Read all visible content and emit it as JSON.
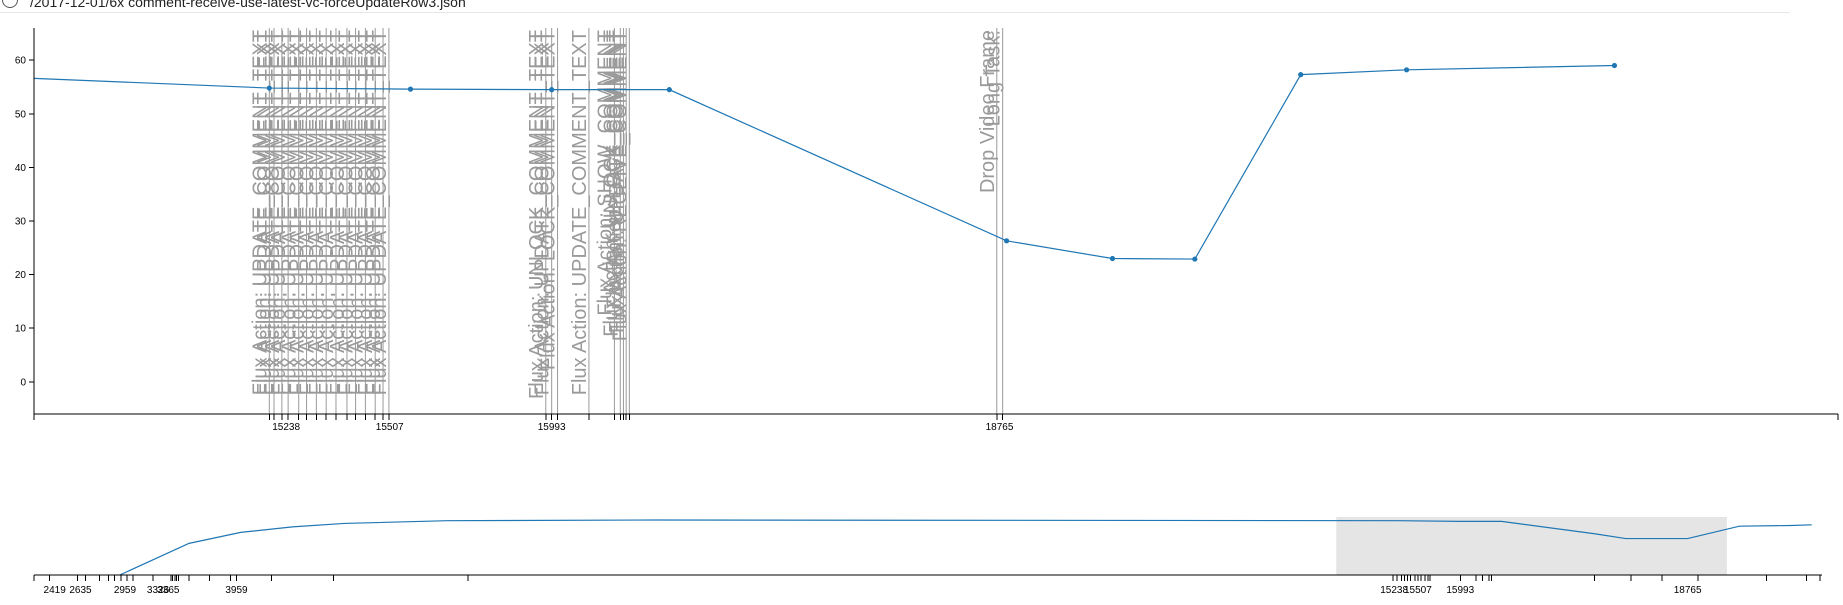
{
  "header": {
    "file_path": "/2017-12-01/6x comment-receive-use-latest-vc-forceUpdateRow3.json"
  },
  "colors": {
    "series": "#1f77b4",
    "annotation": "#9a9a9a",
    "brush": "#e5e5e5"
  },
  "chart_data": [
    {
      "type": "line",
      "title": "",
      "xlabel": "",
      "ylabel": "",
      "ylim": [
        -6,
        66
      ],
      "yticks": [
        0,
        10,
        20,
        30,
        40,
        50,
        60
      ],
      "xlim": [
        14600,
        19200
      ],
      "xtick_labels": [
        "15238",
        "15507",
        "15993",
        "18765"
      ],
      "series": [
        {
          "x": [
            14600,
            15200,
            15560,
            15920,
            16220,
            17080,
            17350,
            17560,
            17830,
            18100,
            18630
          ],
          "y": [
            56.6,
            54.8,
            54.6,
            54.5,
            54.5,
            26.3,
            23.0,
            22.9,
            57.3,
            58.2,
            59.0
          ]
        }
      ],
      "annotations": [
        {
          "x": 15200,
          "label": "Flux Action: UPDATE_COMMENT_TEXT"
        },
        {
          "x": 15212,
          "label": "Flux Action: UPDATE_COMMENT_TEXT"
        },
        {
          "x": 15232,
          "label": "Flux Action: UPDATE_COMMENT_TEXT"
        },
        {
          "x": 15248,
          "label": "Flux Action: UPDATE_COMMENT_TEXT"
        },
        {
          "x": 15275,
          "label": "Flux Action: UPDATE_COMMENT_TEXT"
        },
        {
          "x": 15295,
          "label": "Flux Action: UPDATE_COMMENT_TEXT"
        },
        {
          "x": 15320,
          "label": "Flux Action: UPDATE_COMMENT_TEXT"
        },
        {
          "x": 15345,
          "label": "Flux Action: UPDATE_COMMENT_TEXT"
        },
        {
          "x": 15370,
          "label": "Flux Action: UPDATE_COMMENT_TEXT"
        },
        {
          "x": 15398,
          "label": "Flux Action: UPDATE_COMMENT_TEXT"
        },
        {
          "x": 15420,
          "label": "Flux Action: UPDATE_COMMENT_TEXT"
        },
        {
          "x": 15445,
          "label": "Flux Action: UPDATE_COMMENT_TEXT"
        },
        {
          "x": 15470,
          "label": "Flux Action: UPDATE_COMMENT_TEXT"
        },
        {
          "x": 15490,
          "label": "Flux Action: UPDATE_COMMENT_TEXT"
        },
        {
          "x": 15505,
          "label": "Flux Action: UPDATE_COMMENT_TEXT"
        },
        {
          "x": 15905,
          "label": "Flux Action: UNLOCK_COMMENT_TEXT"
        },
        {
          "x": 15920,
          "label": "Flux Action: UPDATE_COMMENT_TEXT"
        },
        {
          "x": 15935,
          "label": "Flux Action: LOCK_COMMENT_TEXT"
        },
        {
          "x": 16015,
          "label": "Flux Action: UPDATE_COMMENT_TEXT"
        },
        {
          "x": 16080,
          "label": "Flux Action: SHOW_COMMENT"
        },
        {
          "x": 16095,
          "label": "Flux Action: UNLOCK_COMMENT"
        },
        {
          "x": 16103,
          "label": "Flux Action: LOCK_COMMENT"
        },
        {
          "x": 16110,
          "label": "Flux Action: UPDATE_COMMENT"
        },
        {
          "x": 16118,
          "label": "Flux Action: RECEIVE_COMMENT"
        },
        {
          "x": 17055,
          "label": "Drop Video Frame"
        },
        {
          "x": 17070,
          "label": "Long Task:"
        }
      ]
    },
    {
      "type": "line",
      "title": "",
      "xlabel": "",
      "ylabel": "",
      "role": "overview",
      "xtick_labels": [
        "2419",
        "2635",
        "2959",
        "3326",
        "3365",
        "3959",
        "15238",
        "15507",
        "15993",
        "18765"
      ],
      "series": [
        {
          "x": [
            2830,
            3500,
            4000,
            4500,
            5000,
            6000,
            8000,
            15200,
            15800,
            16200,
            17100,
            17400,
            18000,
            18500,
            19000,
            19200
          ],
          "y": [
            0,
            46,
            62,
            70,
            75,
            79,
            80,
            79,
            78,
            78,
            60,
            53,
            53,
            71,
            72,
            73
          ]
        }
      ],
      "brush": {
        "x_range": [
          14600,
          18380
        ]
      }
    }
  ]
}
